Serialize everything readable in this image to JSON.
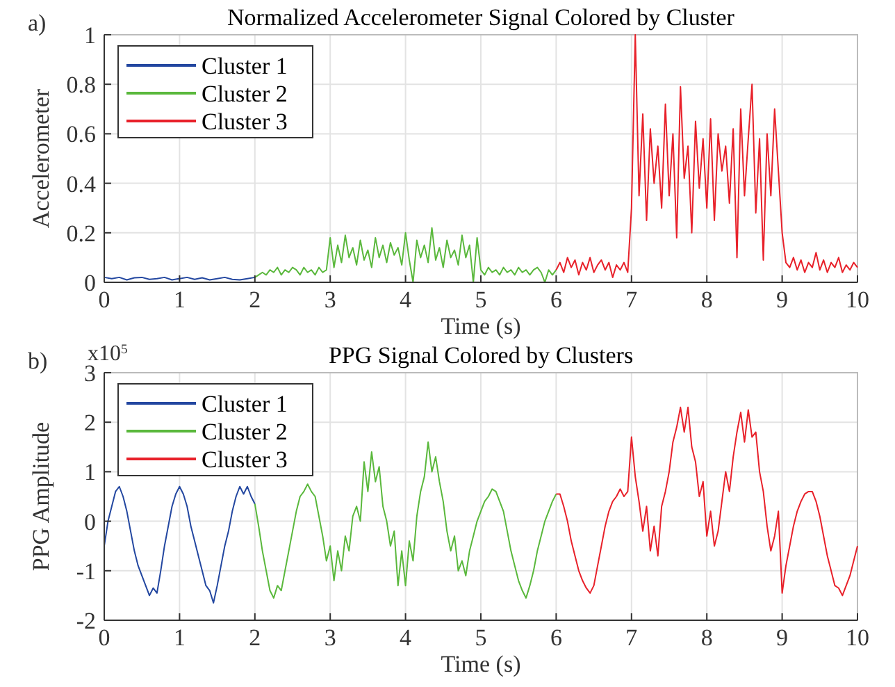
{
  "chart_data": [
    {
      "type": "line",
      "title": "Normalized Accelerometer Signal Colored by Cluster",
      "xlabel": "Time (s)",
      "ylabel": "Accelerometer",
      "annotations": [
        "a)"
      ],
      "xlim": [
        0,
        10
      ],
      "xticks": [
        0,
        1,
        2,
        3,
        4,
        5,
        6,
        7,
        8,
        9,
        10
      ],
      "ylim": [
        0,
        1
      ],
      "yticks": [
        0,
        0.2,
        0.4,
        0.6,
        0.8,
        1
      ],
      "grid": true,
      "legend": "top left",
      "marker": "none",
      "line_style": "solid",
      "series": [
        {
          "name": "Cluster 1",
          "color": "#2347a0",
          "x": [
            0,
            0.1,
            0.2,
            0.3,
            0.4,
            0.5,
            0.6,
            0.7,
            0.8,
            0.9,
            1,
            1.1,
            1.2,
            1.3,
            1.4,
            1.5,
            1.6,
            1.7,
            1.8,
            1.9,
            2
          ],
          "values": [
            0.02,
            0.015,
            0.02,
            0.01,
            0.018,
            0.02,
            0.012,
            0.015,
            0.02,
            0.01,
            0.015,
            0.02,
            0.012,
            0.018,
            0.01,
            0.015,
            0.02,
            0.012,
            0.01,
            0.015,
            0.02
          ]
        },
        {
          "name": "Cluster 2",
          "color": "#5ab83c",
          "x": [
            2,
            2.05,
            2.1,
            2.15,
            2.2,
            2.25,
            2.3,
            2.35,
            2.4,
            2.45,
            2.5,
            2.55,
            2.6,
            2.65,
            2.7,
            2.75,
            2.8,
            2.85,
            2.9,
            2.95,
            3,
            3.05,
            3.1,
            3.15,
            3.2,
            3.25,
            3.3,
            3.35,
            3.4,
            3.45,
            3.5,
            3.55,
            3.6,
            3.65,
            3.7,
            3.75,
            3.8,
            3.85,
            3.9,
            3.95,
            4,
            4.05,
            4.1,
            4.15,
            4.2,
            4.25,
            4.3,
            4.35,
            4.4,
            4.45,
            4.5,
            4.55,
            4.6,
            4.65,
            4.7,
            4.75,
            4.8,
            4.85,
            4.9,
            4.95,
            5,
            5.05,
            5.1,
            5.15,
            5.2,
            5.25,
            5.3,
            5.35,
            5.4,
            5.45,
            5.5,
            5.55,
            5.6,
            5.65,
            5.7,
            5.75,
            5.8,
            5.85,
            5.9,
            5.95,
            6
          ],
          "values": [
            0.02,
            0.03,
            0.04,
            0.03,
            0.05,
            0.04,
            0.06,
            0.03,
            0.05,
            0.04,
            0.06,
            0.05,
            0.03,
            0.06,
            0.04,
            0.05,
            0.03,
            0.06,
            0.04,
            0.05,
            0.18,
            0.06,
            0.15,
            0.08,
            0.19,
            0.1,
            0.14,
            0.07,
            0.17,
            0.09,
            0.13,
            0.06,
            0.18,
            0.1,
            0.15,
            0.08,
            0.16,
            0.11,
            0.14,
            0.07,
            0.2,
            0.09,
            0,
            0.17,
            0.1,
            0.15,
            0.08,
            0.22,
            0.09,
            0.14,
            0.06,
            0.17,
            0.1,
            0.13,
            0.07,
            0.19,
            0.1,
            0.15,
            0,
            0.18,
            0.05,
            0.03,
            0.06,
            0.04,
            0.05,
            0.03,
            0.06,
            0.04,
            0.05,
            0.03,
            0.06,
            0.04,
            0.05,
            0.03,
            0.05,
            0.06,
            0.04,
            0,
            0.05,
            0.03,
            0.05
          ]
        },
        {
          "name": "Cluster 3",
          "color": "#e8212a",
          "x": [
            6,
            6.05,
            6.1,
            6.15,
            6.2,
            6.25,
            6.3,
            6.35,
            6.4,
            6.45,
            6.5,
            6.55,
            6.6,
            6.65,
            6.7,
            6.75,
            6.8,
            6.85,
            6.9,
            6.95,
            7,
            7.05,
            7.1,
            7.15,
            7.2,
            7.25,
            7.3,
            7.35,
            7.4,
            7.45,
            7.5,
            7.55,
            7.6,
            7.65,
            7.7,
            7.75,
            7.8,
            7.85,
            7.9,
            7.95,
            8,
            8.05,
            8.1,
            8.15,
            8.2,
            8.25,
            8.3,
            8.35,
            8.4,
            8.45,
            8.5,
            8.55,
            8.6,
            8.65,
            8.7,
            8.75,
            8.8,
            8.85,
            8.9,
            8.95,
            9,
            9.05,
            9.1,
            9.15,
            9.2,
            9.25,
            9.3,
            9.35,
            9.4,
            9.45,
            9.5,
            9.55,
            9.6,
            9.65,
            9.7,
            9.75,
            9.8,
            9.85,
            9.9,
            9.95,
            10
          ],
          "values": [
            0.05,
            0.08,
            0.04,
            0.1,
            0.06,
            0.09,
            0.03,
            0.08,
            0.05,
            0.1,
            0.04,
            0.07,
            0.09,
            0.05,
            0.08,
            0.02,
            0.07,
            0.05,
            0.08,
            0.04,
            0.3,
            1,
            0.35,
            0.68,
            0.25,
            0.62,
            0.4,
            0.55,
            0.3,
            0.72,
            0.35,
            0.6,
            0.18,
            0.79,
            0.42,
            0.55,
            0.2,
            0.65,
            0.38,
            0.58,
            0.3,
            0.66,
            0.25,
            0.6,
            0.45,
            0.55,
            0.32,
            0.62,
            0.1,
            0.7,
            0.35,
            0.58,
            0.8,
            0.28,
            0.58,
            0.09,
            0.6,
            0.35,
            0.7,
            0.45,
            0.2,
            0.08,
            0.06,
            0.1,
            0.05,
            0.09,
            0.04,
            0.08,
            0.06,
            0.12,
            0.05,
            0.09,
            0.04,
            0.08,
            0.06,
            0.1,
            0.04,
            0.07,
            0.05,
            0.08,
            0.06
          ]
        }
      ]
    },
    {
      "type": "line",
      "title": "PPG Signal Colored by Clusters",
      "xlabel": "Time (s)",
      "ylabel": "PPG Amplitude",
      "annotations": [
        "b)",
        "x10$^{5}$"
      ],
      "xlim": [
        0,
        10
      ],
      "xticks": [
        0,
        1,
        2,
        3,
        4,
        5,
        6,
        7,
        8,
        9,
        10
      ],
      "ylim": [
        -2,
        3
      ],
      "yticks": [
        -2,
        -1,
        0,
        1,
        2,
        3
      ],
      "grid": true,
      "legend": "top left",
      "marker": "none",
      "line_style": "solid",
      "series": [
        {
          "name": "Cluster 1",
          "color": "#2347a0",
          "x": [
            0,
            0.05,
            0.1,
            0.15,
            0.2,
            0.25,
            0.3,
            0.35,
            0.4,
            0.45,
            0.5,
            0.55,
            0.6,
            0.65,
            0.7,
            0.75,
            0.8,
            0.85,
            0.9,
            0.95,
            1,
            1.05,
            1.1,
            1.15,
            1.2,
            1.25,
            1.3,
            1.35,
            1.4,
            1.45,
            1.5,
            1.55,
            1.6,
            1.65,
            1.7,
            1.75,
            1.8,
            1.85,
            1.9,
            1.95,
            2
          ],
          "values": [
            -0.5,
            0,
            0.3,
            0.6,
            0.7,
            0.5,
            0.2,
            -0.2,
            -0.6,
            -0.9,
            -1.1,
            -1.3,
            -1.5,
            -1.35,
            -1.45,
            -1,
            -0.5,
            -0.1,
            0.3,
            0.55,
            0.7,
            0.55,
            0.3,
            -0.1,
            -0.4,
            -0.7,
            -1,
            -1.3,
            -1.4,
            -1.65,
            -1.3,
            -0.9,
            -0.5,
            -0.2,
            0.2,
            0.5,
            0.7,
            0.55,
            0.7,
            0.5,
            0.35
          ]
        },
        {
          "name": "Cluster 2",
          "color": "#5ab83c",
          "x": [
            2,
            2.05,
            2.1,
            2.15,
            2.2,
            2.25,
            2.3,
            2.35,
            2.4,
            2.45,
            2.5,
            2.55,
            2.6,
            2.65,
            2.7,
            2.75,
            2.8,
            2.85,
            2.9,
            2.95,
            3,
            3.05,
            3.1,
            3.15,
            3.2,
            3.25,
            3.3,
            3.35,
            3.4,
            3.45,
            3.5,
            3.55,
            3.6,
            3.65,
            3.7,
            3.75,
            3.8,
            3.85,
            3.9,
            3.95,
            4,
            4.05,
            4.1,
            4.15,
            4.2,
            4.25,
            4.3,
            4.35,
            4.4,
            4.45,
            4.5,
            4.55,
            4.6,
            4.65,
            4.7,
            4.75,
            4.8,
            4.85,
            4.9,
            4.95,
            5,
            5.05,
            5.1,
            5.15,
            5.2,
            5.25,
            5.3,
            5.35,
            5.4,
            5.45,
            5.5,
            5.55,
            5.6,
            5.65,
            5.7,
            5.75,
            5.8,
            5.85,
            5.9,
            5.95,
            6
          ],
          "values": [
            0.35,
            -0.1,
            -0.6,
            -1,
            -1.4,
            -1.55,
            -1.3,
            -1.4,
            -1,
            -0.6,
            -0.2,
            0.2,
            0.5,
            0.6,
            0.75,
            0.6,
            0.5,
            0.1,
            -0.3,
            -0.8,
            -0.5,
            -1.2,
            -0.6,
            -1,
            -0.3,
            -0.6,
            0.1,
            0.3,
            0,
            1.2,
            0.6,
            1.4,
            0.8,
            1.1,
            0.3,
            0,
            -0.5,
            -0.2,
            -1.3,
            -0.6,
            -1.3,
            -0.4,
            -0.8,
            0.1,
            0.6,
            0.9,
            1.6,
            1,
            1.3,
            0.8,
            0.4,
            -0.2,
            -0.6,
            -0.3,
            -1,
            -0.8,
            -1.1,
            -0.6,
            -0.3,
            0,
            0.2,
            0.4,
            0.5,
            0.65,
            0.6,
            0.4,
            0.2,
            -0.2,
            -0.6,
            -0.9,
            -1.2,
            -1.4,
            -1.55,
            -1.3,
            -1,
            -0.6,
            -0.3,
            0,
            0.2,
            0.4,
            0.55
          ]
        },
        {
          "name": "Cluster 3",
          "color": "#e8212a",
          "x": [
            6,
            6.05,
            6.1,
            6.15,
            6.2,
            6.25,
            6.3,
            6.35,
            6.4,
            6.45,
            6.5,
            6.55,
            6.6,
            6.65,
            6.7,
            6.75,
            6.8,
            6.85,
            6.9,
            6.95,
            7,
            7.05,
            7.1,
            7.15,
            7.2,
            7.25,
            7.3,
            7.35,
            7.4,
            7.45,
            7.5,
            7.55,
            7.6,
            7.65,
            7.7,
            7.75,
            7.8,
            7.85,
            7.9,
            7.95,
            8,
            8.05,
            8.1,
            8.15,
            8.2,
            8.25,
            8.3,
            8.35,
            8.4,
            8.45,
            8.5,
            8.55,
            8.6,
            8.65,
            8.7,
            8.75,
            8.8,
            8.85,
            8.9,
            8.95,
            9,
            9.05,
            9.1,
            9.15,
            9.2,
            9.25,
            9.3,
            9.35,
            9.4,
            9.45,
            9.5,
            9.55,
            9.6,
            9.65,
            9.7,
            9.75,
            9.8,
            9.85,
            9.9,
            9.95,
            10
          ],
          "values": [
            0.55,
            0.55,
            0.3,
            0,
            -0.4,
            -0.7,
            -1,
            -1.2,
            -1.35,
            -1.45,
            -1.3,
            -0.9,
            -0.5,
            -0.1,
            0.2,
            0.4,
            0.5,
            0.65,
            0.5,
            0.6,
            1.7,
            0.9,
            0.4,
            -0.2,
            0.3,
            -0.6,
            -0.1,
            -0.7,
            0.3,
            0.6,
            1,
            1.6,
            1.9,
            2.3,
            1.8,
            2.3,
            1.5,
            1.2,
            0.5,
            0.8,
            -0.3,
            0.2,
            -0.5,
            -0.2,
            0.4,
            1,
            0.6,
            1.3,
            1.8,
            2.2,
            1.6,
            2.25,
            1.7,
            1.8,
            1,
            0.6,
            -0.1,
            -0.6,
            -0.3,
            0.2,
            -1.45,
            -0.9,
            -0.5,
            -0.1,
            0.2,
            0.4,
            0.55,
            0.6,
            0.6,
            0.4,
            0.1,
            -0.3,
            -0.7,
            -1,
            -1.3,
            -1.35,
            -1.5,
            -1.3,
            -1.1,
            -0.8,
            -0.5
          ]
        }
      ]
    }
  ]
}
